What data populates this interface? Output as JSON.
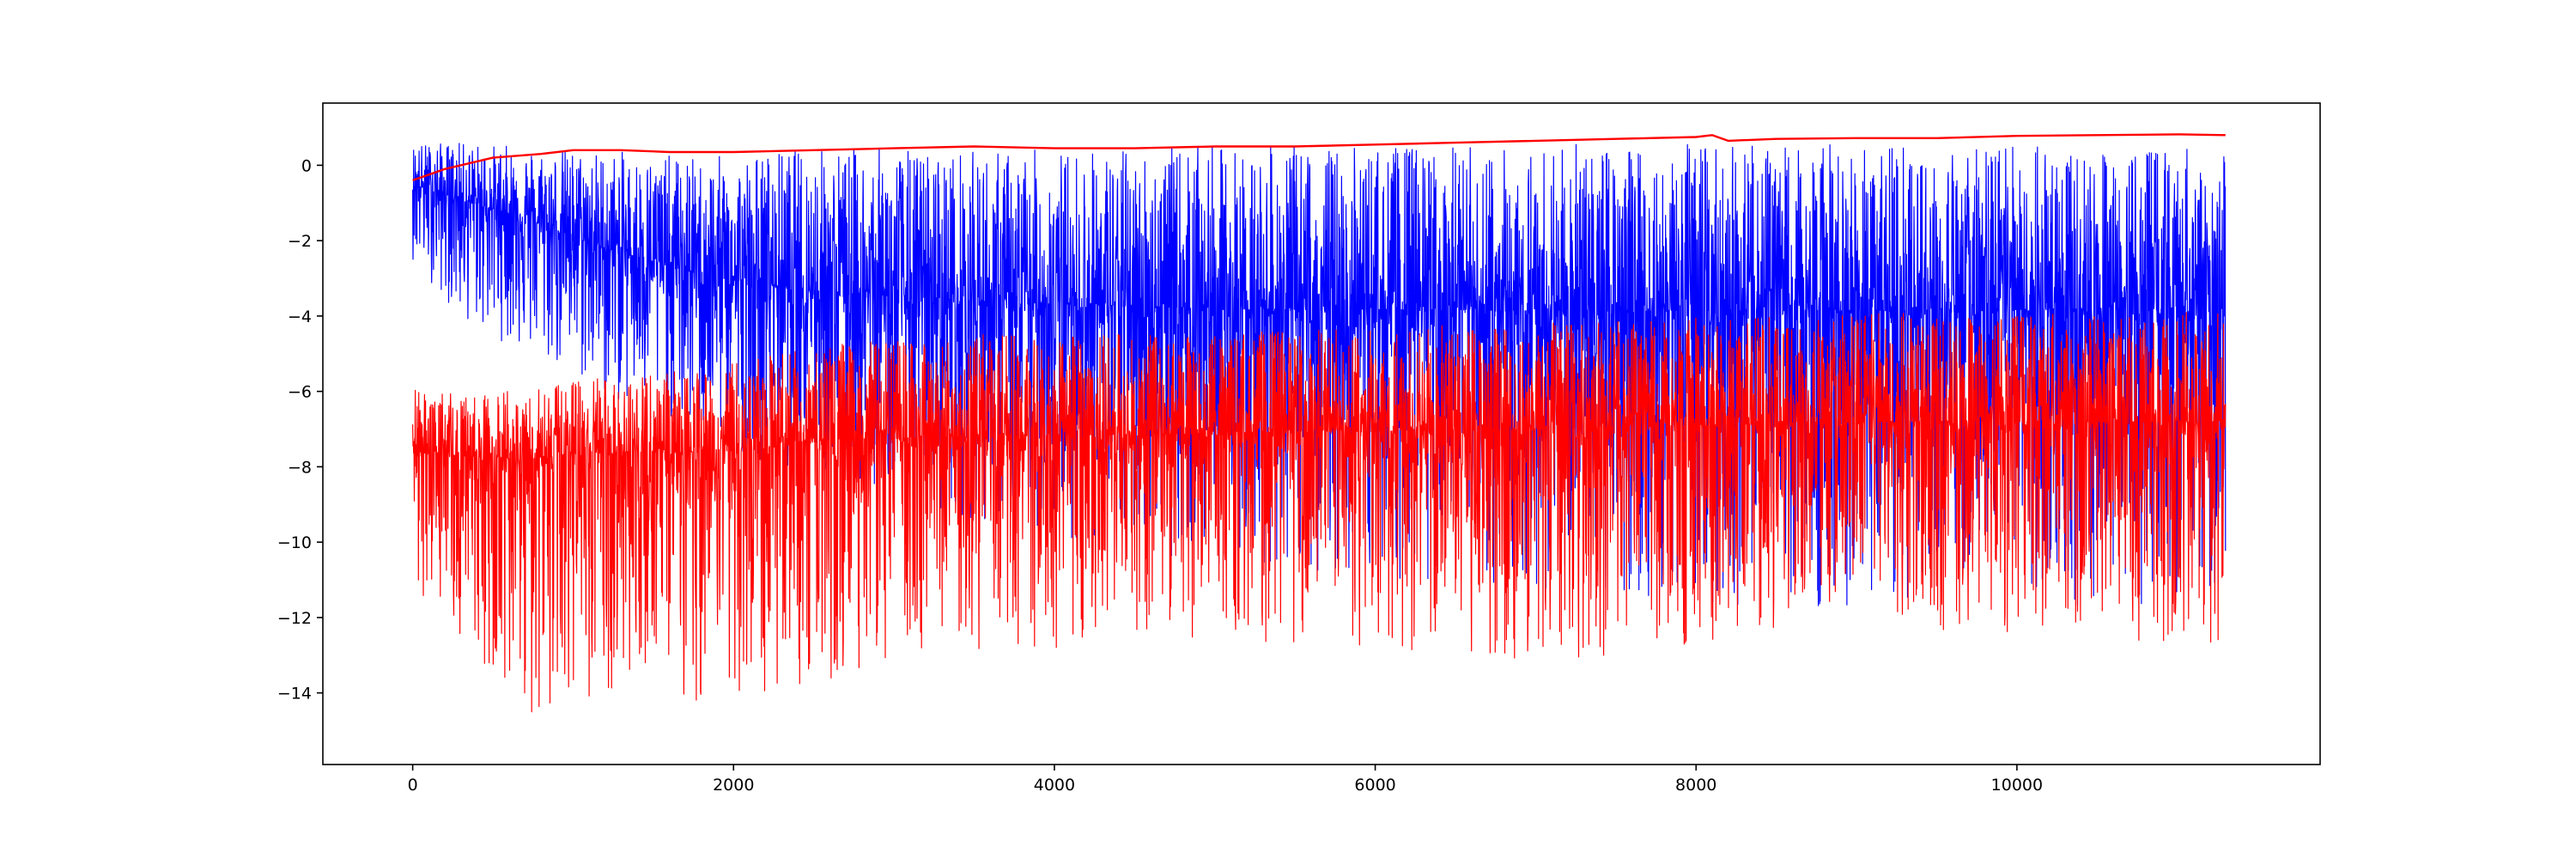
{
  "chart_data": {
    "type": "line",
    "title": "",
    "xlabel": "",
    "ylabel": "",
    "xlim": [
      -560,
      11890
    ],
    "ylim": [
      -15.9,
      1.65
    ],
    "x_ticks": [
      0,
      2000,
      4000,
      6000,
      8000,
      10000
    ],
    "y_ticks": [
      0,
      -2,
      -4,
      -6,
      -8,
      -10,
      -12,
      -14
    ],
    "x_tick_labels": [
      "0",
      "2000",
      "4000",
      "6000",
      "8000",
      "10000"
    ],
    "y_tick_labels": [
      "0",
      "−2",
      "−4",
      "−6",
      "−8",
      "−10",
      "−12",
      "−14"
    ],
    "grid": false,
    "legend": "none",
    "n_points": 11300,
    "series": [
      {
        "color": "#0000ff",
        "kind": "noisy",
        "x": [
          0,
          300,
          700,
          1200,
          1800,
          2500,
          3500,
          5000,
          7000,
          9000,
          11300
        ],
        "center": [
          -0.5,
          -0.9,
          -1.4,
          -2.2,
          -2.9,
          -3.3,
          -3.6,
          -3.8,
          -3.85,
          -3.85,
          -3.8
        ],
        "spread_up": [
          1.1,
          1.5,
          1.9,
          2.6,
          3.1,
          3.8,
          4.0,
          4.3,
          4.4,
          4.4,
          4.3
        ],
        "spread_down": [
          2.0,
          3.2,
          3.6,
          4.0,
          4.4,
          5.0,
          5.8,
          6.8,
          7.5,
          8.0,
          8.0
        ]
      },
      {
        "color": "#ff0000",
        "kind": "noisy",
        "x": [
          0,
          300,
          700,
          1200,
          1800,
          2500,
          3500,
          5000,
          7000,
          9000,
          11300
        ],
        "center": [
          -7.6,
          -7.7,
          -7.8,
          -7.6,
          -7.6,
          -7.3,
          -7.2,
          -7.1,
          -7.0,
          -6.8,
          -6.8
        ],
        "spread_up": [
          1.7,
          1.7,
          1.8,
          2.0,
          2.2,
          2.5,
          2.7,
          2.7,
          2.8,
          2.9,
          2.9
        ],
        "spread_down": [
          4.3,
          4.8,
          6.9,
          6.5,
          6.6,
          6.5,
          5.7,
          5.5,
          6.2,
          5.5,
          6.0
        ]
      },
      {
        "color": "#ff0000",
        "kind": "smooth",
        "x": [
          0,
          200,
          500,
          800,
          1000,
          1300,
          1600,
          2000,
          2500,
          3000,
          3500,
          4000,
          4500,
          5000,
          5500,
          6000,
          6500,
          7000,
          7500,
          8000,
          8100,
          8200,
          8500,
          9000,
          9500,
          10000,
          10500,
          11000,
          11300
        ],
        "y": [
          -0.4,
          -0.1,
          0.2,
          0.3,
          0.4,
          0.4,
          0.35,
          0.35,
          0.4,
          0.45,
          0.5,
          0.45,
          0.45,
          0.5,
          0.5,
          0.55,
          0.6,
          0.65,
          0.7,
          0.75,
          0.8,
          0.65,
          0.7,
          0.72,
          0.72,
          0.78,
          0.8,
          0.82,
          0.8
        ]
      }
    ]
  }
}
